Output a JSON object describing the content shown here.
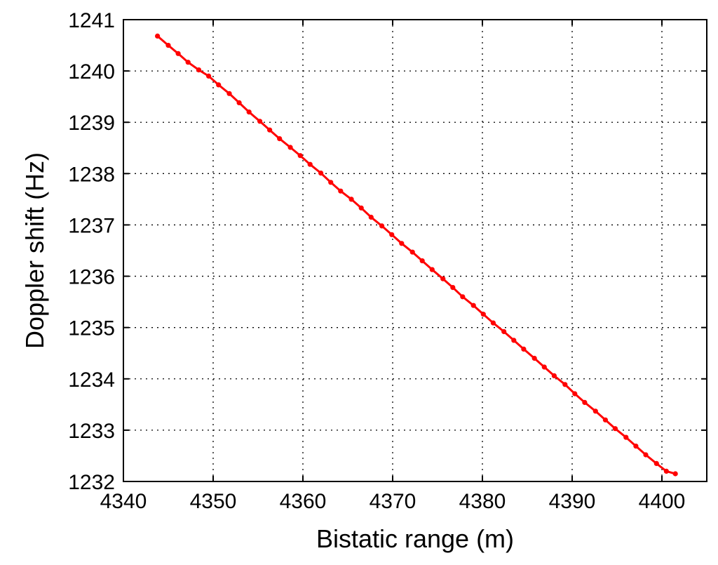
{
  "chart_data": {
    "type": "line",
    "title": "",
    "xlabel": "Bistatic range (m)",
    "ylabel": "Doppler shift (Hz)",
    "xlim": [
      4340,
      4405
    ],
    "ylim": [
      1232,
      1241
    ],
    "xticks": [
      4340,
      4350,
      4360,
      4370,
      4380,
      4390,
      4400
    ],
    "yticks": [
      1232,
      1233,
      1234,
      1235,
      1236,
      1237,
      1238,
      1239,
      1240,
      1241
    ],
    "grid": true,
    "legend": "none",
    "series": [
      {
        "color": "#ff0000",
        "marker": "dot",
        "x": [
          4343.8,
          4345.0,
          4346.1,
          4347.2,
          4348.4,
          4349.5,
          4350.6,
          4351.8,
          4352.9,
          4354.0,
          4355.2,
          4356.3,
          4357.4,
          4358.6,
          4359.7,
          4360.8,
          4362.0,
          4363.1,
          4364.2,
          4365.4,
          4366.5,
          4367.6,
          4368.8,
          4369.9,
          4371.0,
          4372.2,
          4373.3,
          4374.4,
          4375.6,
          4376.7,
          4377.8,
          4379.0,
          4380.1,
          4381.2,
          4382.4,
          4383.5,
          4384.6,
          4385.8,
          4386.9,
          4388.0,
          4389.2,
          4390.3,
          4391.4,
          4392.6,
          4393.7,
          4394.8,
          4396.0,
          4397.1,
          4398.2,
          4399.4,
          4400.5,
          4401.5
        ],
        "y": [
          1240.68,
          1240.5,
          1240.34,
          1240.17,
          1240.02,
          1239.9,
          1239.73,
          1239.56,
          1239.38,
          1239.2,
          1239.02,
          1238.85,
          1238.68,
          1238.51,
          1238.35,
          1238.18,
          1238.01,
          1237.83,
          1237.66,
          1237.5,
          1237.33,
          1237.15,
          1236.98,
          1236.81,
          1236.64,
          1236.47,
          1236.3,
          1236.13,
          1235.95,
          1235.78,
          1235.6,
          1235.43,
          1235.26,
          1235.09,
          1234.92,
          1234.75,
          1234.58,
          1234.4,
          1234.23,
          1234.06,
          1233.89,
          1233.71,
          1233.54,
          1233.37,
          1233.2,
          1233.03,
          1232.86,
          1232.69,
          1232.52,
          1232.35,
          1232.2,
          1232.15
        ]
      }
    ]
  }
}
